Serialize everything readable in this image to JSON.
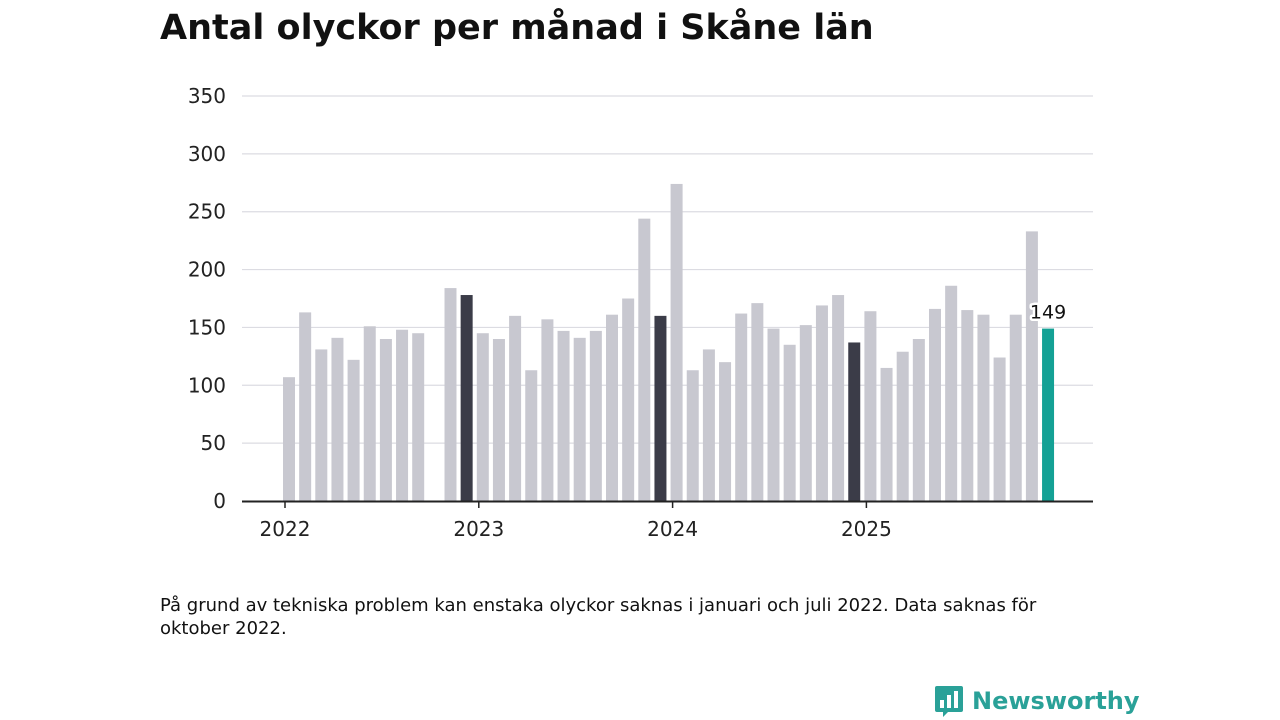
{
  "title": "Antal olyckor per månad i Skåne län",
  "footnote": "På grund av tekniska problem kan enstaka olyckor saknas i januari och juli 2022. Data saknas för oktober 2022.",
  "brand": {
    "name": "Newsworthy",
    "icon": "newsworthy-logo-icon",
    "color": "#2aa198"
  },
  "colors": {
    "bar": "#c8c8d0",
    "december": "#3b3c48",
    "latest": "#14a195",
    "grid": "#dcdce2",
    "axis": "#222222"
  },
  "chart_data": {
    "type": "bar",
    "title": "Antal olyckor per månad i Skåne län",
    "xlabel": "",
    "ylabel": "",
    "ylim": [
      0,
      350
    ],
    "yticks": [
      "0",
      "50",
      "100",
      "150",
      "200",
      "250",
      "300",
      "350"
    ],
    "xticks": [
      {
        "label": "2022",
        "index": 0
      },
      {
        "label": "2023",
        "index": 12
      },
      {
        "label": "2024",
        "index": 24
      },
      {
        "label": "2025",
        "index": 36
      }
    ],
    "categories": [
      "2022-01",
      "2022-02",
      "2022-03",
      "2022-04",
      "2022-05",
      "2022-06",
      "2022-07",
      "2022-08",
      "2022-09",
      "2022-10",
      "2022-11",
      "2022-12",
      "2023-01",
      "2023-02",
      "2023-03",
      "2023-04",
      "2023-05",
      "2023-06",
      "2023-07",
      "2023-08",
      "2023-09",
      "2023-10",
      "2023-11",
      "2023-12",
      "2024-01",
      "2024-02",
      "2024-03",
      "2024-04",
      "2024-05",
      "2024-06",
      "2024-07",
      "2024-08",
      "2024-09",
      "2024-10",
      "2024-11",
      "2024-12",
      "2025-01",
      "2025-02",
      "2025-03",
      "2025-04",
      "2025-05",
      "2025-06",
      "2025-07",
      "2025-08",
      "2025-09",
      "2025-10",
      "2025-11"
    ],
    "values": [
      107,
      163,
      131,
      141,
      122,
      151,
      140,
      148,
      145,
      null,
      184,
      178,
      145,
      140,
      160,
      113,
      157,
      147,
      141,
      147,
      161,
      175,
      244,
      160,
      274,
      113,
      131,
      120,
      162,
      171,
      149,
      135,
      152,
      169,
      178,
      137,
      164,
      115,
      129,
      140,
      166,
      186,
      165,
      161,
      124,
      161,
      233
    ],
    "highlight_months": [
      "2022-12",
      "2023-12",
      "2024-12"
    ],
    "latest": {
      "category": "2025-12",
      "value": 149,
      "label": "149"
    }
  }
}
